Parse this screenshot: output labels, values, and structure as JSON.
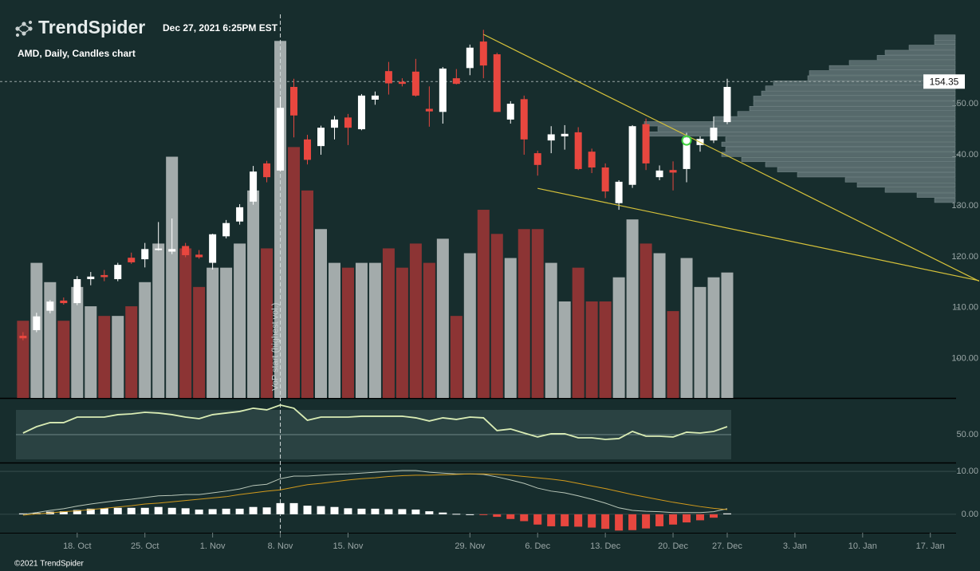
{
  "brand": "TrendSpider",
  "timestamp": "Dec 27, 2021 6:25PM EST",
  "subtitle": "AMD, Daily, Candles chart",
  "copyright": "©2021 TrendSpider",
  "chart_data": {
    "type": "candlestick",
    "xlim": [
      -1.7,
      68.9
    ],
    "xticks": [
      {
        "value": 4,
        "label": "18. Oct"
      },
      {
        "value": 9,
        "label": "25. Oct"
      },
      {
        "value": 14,
        "label": "1. Nov"
      },
      {
        "value": 19,
        "label": "8. Nov"
      },
      {
        "value": 24,
        "label": "15. Nov"
      },
      {
        "value": 33,
        "label": "29. Nov"
      },
      {
        "value": 38,
        "label": "6. Dec"
      },
      {
        "value": 43,
        "label": "13. Dec"
      },
      {
        "value": 48,
        "label": "20. Dec"
      },
      {
        "value": 52,
        "label": "27. Dec"
      },
      {
        "value": 57,
        "label": "3. Jan"
      },
      {
        "value": 62,
        "label": "10. Jan"
      },
      {
        "value": 67,
        "label": "17. Jan"
      }
    ],
    "ylim": [
      92.3,
      168
    ],
    "yticks": [
      {
        "value": 100,
        "label": "100.00"
      },
      {
        "value": 110,
        "label": "110.00"
      },
      {
        "value": 120,
        "label": "120.00"
      },
      {
        "value": 130,
        "label": "130.00"
      },
      {
        "value": 140,
        "label": "140.00"
      },
      {
        "value": 150,
        "label": "150.00"
      }
    ],
    "up_color": "#ffffff",
    "down_color": "#e8473f",
    "open": [
      104.5,
      105.6,
      109.4,
      111.4,
      110.9,
      115.6,
      116.4,
      115.6,
      119.8,
      119.5,
      121.3,
      121.0,
      122.1,
      120.4,
      118.8,
      124.0,
      126.9,
      130.8,
      138.3,
      136.9,
      153.3,
      143.0,
      141.7,
      145.3,
      147.3,
      145.0,
      150.8,
      156.4,
      154.3,
      156.3,
      149.0,
      148.4,
      155.0,
      157.0,
      162.2,
      159.7,
      146.9,
      150.9,
      140.3,
      142.8,
      143.6,
      144.4,
      140.6,
      137.5,
      130.5,
      134.1,
      146.0,
      135.6,
      137.0,
      137.2,
      141.9,
      142.8,
      146.4
    ],
    "high": [
      105.2,
      109.0,
      111.5,
      112.0,
      116.2,
      117.0,
      117.4,
      118.8,
      120.8,
      122.7,
      126.8,
      127.5,
      122.7,
      121.3,
      124.5,
      127.2,
      130.3,
      137.8,
      138.8,
      151.4,
      154.9,
      143.9,
      145.7,
      147.6,
      148.0,
      151.9,
      152.4,
      158.2,
      155.0,
      158.8,
      153.4,
      157.2,
      156.8,
      161.6,
      164.5,
      160.0,
      150.5,
      151.6,
      140.8,
      145.6,
      145.8,
      145.4,
      141.2,
      138.3,
      135.0,
      145.8,
      147.1,
      137.9,
      138.7,
      144.3,
      143.6,
      147.5,
      154.9
    ],
    "low": [
      103.6,
      105.2,
      108.9,
      110.6,
      110.5,
      114.4,
      115.2,
      115.2,
      118.6,
      117.9,
      121.2,
      120.5,
      119.9,
      119.6,
      117.5,
      123.6,
      126.3,
      130.2,
      134.6,
      136.7,
      143.4,
      138.1,
      140.0,
      143.0,
      141.9,
      144.8,
      149.8,
      151.8,
      153.4,
      151.4,
      145.5,
      146.1,
      153.8,
      155.6,
      155.0,
      148.4,
      146.1,
      140.0,
      135.9,
      140.3,
      141.0,
      137.0,
      136.4,
      131.5,
      129.2,
      133.5,
      137.0,
      135.0,
      133.0,
      134.6,
      140.6,
      142.3,
      146.0
    ],
    "close": [
      104.0,
      108.3,
      111.2,
      110.9,
      115.6,
      116.1,
      116.0,
      118.4,
      118.9,
      121.5,
      121.6,
      121.5,
      120.3,
      119.9,
      124.4,
      126.6,
      129.7,
      136.7,
      135.6,
      149.2,
      147.7,
      139.0,
      145.3,
      146.9,
      145.3,
      151.6,
      151.6,
      154.0,
      153.9,
      151.6,
      148.5,
      156.9,
      153.9,
      161.0,
      157.5,
      148.4,
      150.0,
      143.0,
      138.0,
      144.0,
      144.1,
      137.2,
      137.5,
      132.8,
      134.7,
      145.6,
      138.3,
      136.9,
      136.5,
      143.4,
      143.1,
      145.3,
      153.3
    ],
    "last_price": 154.35,
    "volume": {
      "ylim": [
        0,
        160
      ],
      "up_color": "#a3abab",
      "down_color": "#8c3434",
      "values": [
        32,
        56,
        48,
        32,
        46,
        38,
        34,
        34,
        38,
        48,
        64,
        100,
        62,
        46,
        54,
        54,
        64,
        86,
        62,
        148,
        104,
        86,
        70,
        56,
        54,
        56,
        56,
        62,
        54,
        64,
        56,
        66,
        34,
        60,
        78,
        68,
        58,
        70,
        70,
        56,
        40,
        54,
        40,
        40,
        50,
        74,
        64,
        60,
        36,
        58,
        46,
        50,
        52
      ]
    },
    "volume_profile": {
      "xlim": [
        0,
        400
      ],
      "color": "#56696b",
      "prices": [
        163,
        162,
        161,
        160,
        159,
        158,
        157,
        156,
        155,
        154,
        153,
        152,
        151,
        150,
        149,
        148,
        147,
        146,
        145,
        144,
        143,
        142,
        141,
        140,
        139,
        138,
        137,
        136,
        135,
        134,
        133,
        132,
        131
      ],
      "values": [
        26,
        26,
        58,
        88,
        98,
        133,
        158,
        183,
        185,
        228,
        238,
        243,
        253,
        253,
        258,
        273,
        303,
        390,
        373,
        390,
        288,
        293,
        288,
        293,
        268,
        238,
        223,
        198,
        138,
        123,
        88,
        48,
        26
      ]
    },
    "trendlines": {
      "color": "#d6c23a",
      "lines": [
        {
          "x": [
            34,
            70.6
          ],
          "y": [
            163.6,
            115.2
          ]
        },
        {
          "x": [
            38,
            70.6
          ],
          "y": [
            133.4,
            115.3
          ]
        }
      ]
    },
    "vop": {
      "x": 19,
      "label": "VoP start (highest vol.)"
    },
    "signal_marker": {
      "x": 49,
      "y": 142.8,
      "color": "#3fd23f"
    },
    "rsi": {
      "ylim": [
        20,
        80
      ],
      "yticks": [
        {
          "value": 50,
          "label": "50.00"
        }
      ],
      "color": "#d9ecb4",
      "values": [
        51.5,
        57.5,
        61.3,
        61.3,
        66.5,
        66.5,
        66.5,
        68.8,
        69.5,
        71,
        70.3,
        68.8,
        66.5,
        65,
        68.8,
        70.3,
        71.8,
        74.8,
        73.3,
        77.8,
        74.8,
        63.5,
        66.5,
        66.5,
        66.5,
        67.3,
        67.3,
        67.3,
        67.3,
        65.8,
        62.8,
        65.8,
        64.3,
        66.5,
        65.8,
        53.8,
        55.3,
        51.5,
        47.8,
        50.8,
        50.8,
        47,
        47,
        45.5,
        46.3,
        53,
        48.5,
        48.5,
        47.8,
        52.3,
        51.5,
        53,
        57.5
      ]
    },
    "macd": {
      "ylim": [
        -4.3,
        11.5
      ],
      "yticks": [
        {
          "value": 10,
          "label": "10.00"
        },
        {
          "value": 0,
          "label": "0.00"
        }
      ],
      "macd_color": "#b9c7b9",
      "signal_color": "#d19a1c",
      "hist_up_color": "#ffffff",
      "hist_down_color": "#e8473f",
      "macd": [
        0,
        0.4,
        0.9,
        1.3,
        1.9,
        2.4,
        2.8,
        3.2,
        3.5,
        3.9,
        4.3,
        4.4,
        4.6,
        4.6,
        5.0,
        5.4,
        5.9,
        6.7,
        7.0,
        8.3,
        8.9,
        8.9,
        9.1,
        9.3,
        9.4,
        9.6,
        9.8,
        10.0,
        10.2,
        10.2,
        9.8,
        9.6,
        9.4,
        9.4,
        9.3,
        8.7,
        8.0,
        7.2,
        6.1,
        5.4,
        5.0,
        4.3,
        3.5,
        2.6,
        1.5,
        0.9,
        0.7,
        0.6,
        0.4,
        0.4,
        0.4,
        0.6,
        1.3
      ],
      "signal": [
        -0.2,
        0.1,
        0.3,
        0.6,
        0.8,
        1.1,
        1.4,
        1.7,
        2.0,
        2.4,
        2.6,
        2.9,
        3.2,
        3.5,
        3.8,
        4.1,
        4.6,
        5.0,
        5.4,
        5.7,
        6.3,
        6.9,
        7.2,
        7.6,
        8.0,
        8.3,
        8.5,
        8.8,
        9.0,
        9.1,
        9.1,
        9.2,
        9.3,
        9.4,
        9.4,
        9.3,
        9.1,
        8.8,
        8.5,
        8.2,
        7.8,
        7.2,
        6.6,
        6.0,
        5.3,
        4.6,
        4.0,
        3.4,
        2.8,
        2.3,
        1.8,
        1.4,
        1.1
      ],
      "histogram": [
        0.2,
        0.3,
        0.6,
        0.7,
        1.0,
        1.3,
        1.4,
        1.5,
        1.5,
        1.5,
        1.7,
        1.5,
        1.4,
        1.1,
        1.2,
        1.3,
        1.3,
        1.7,
        1.6,
        2.6,
        2.6,
        2.0,
        1.9,
        1.7,
        1.4,
        1.3,
        1.3,
        1.2,
        1.2,
        1.1,
        0.7,
        0.4,
        0.1,
        0,
        -0.1,
        -0.6,
        -1.1,
        -1.6,
        -2.4,
        -2.8,
        -2.8,
        -2.9,
        -3.1,
        -3.4,
        -3.8,
        -3.7,
        -3.3,
        -2.8,
        -2.4,
        -1.9,
        -1.4,
        -0.8,
        0.2
      ]
    }
  }
}
